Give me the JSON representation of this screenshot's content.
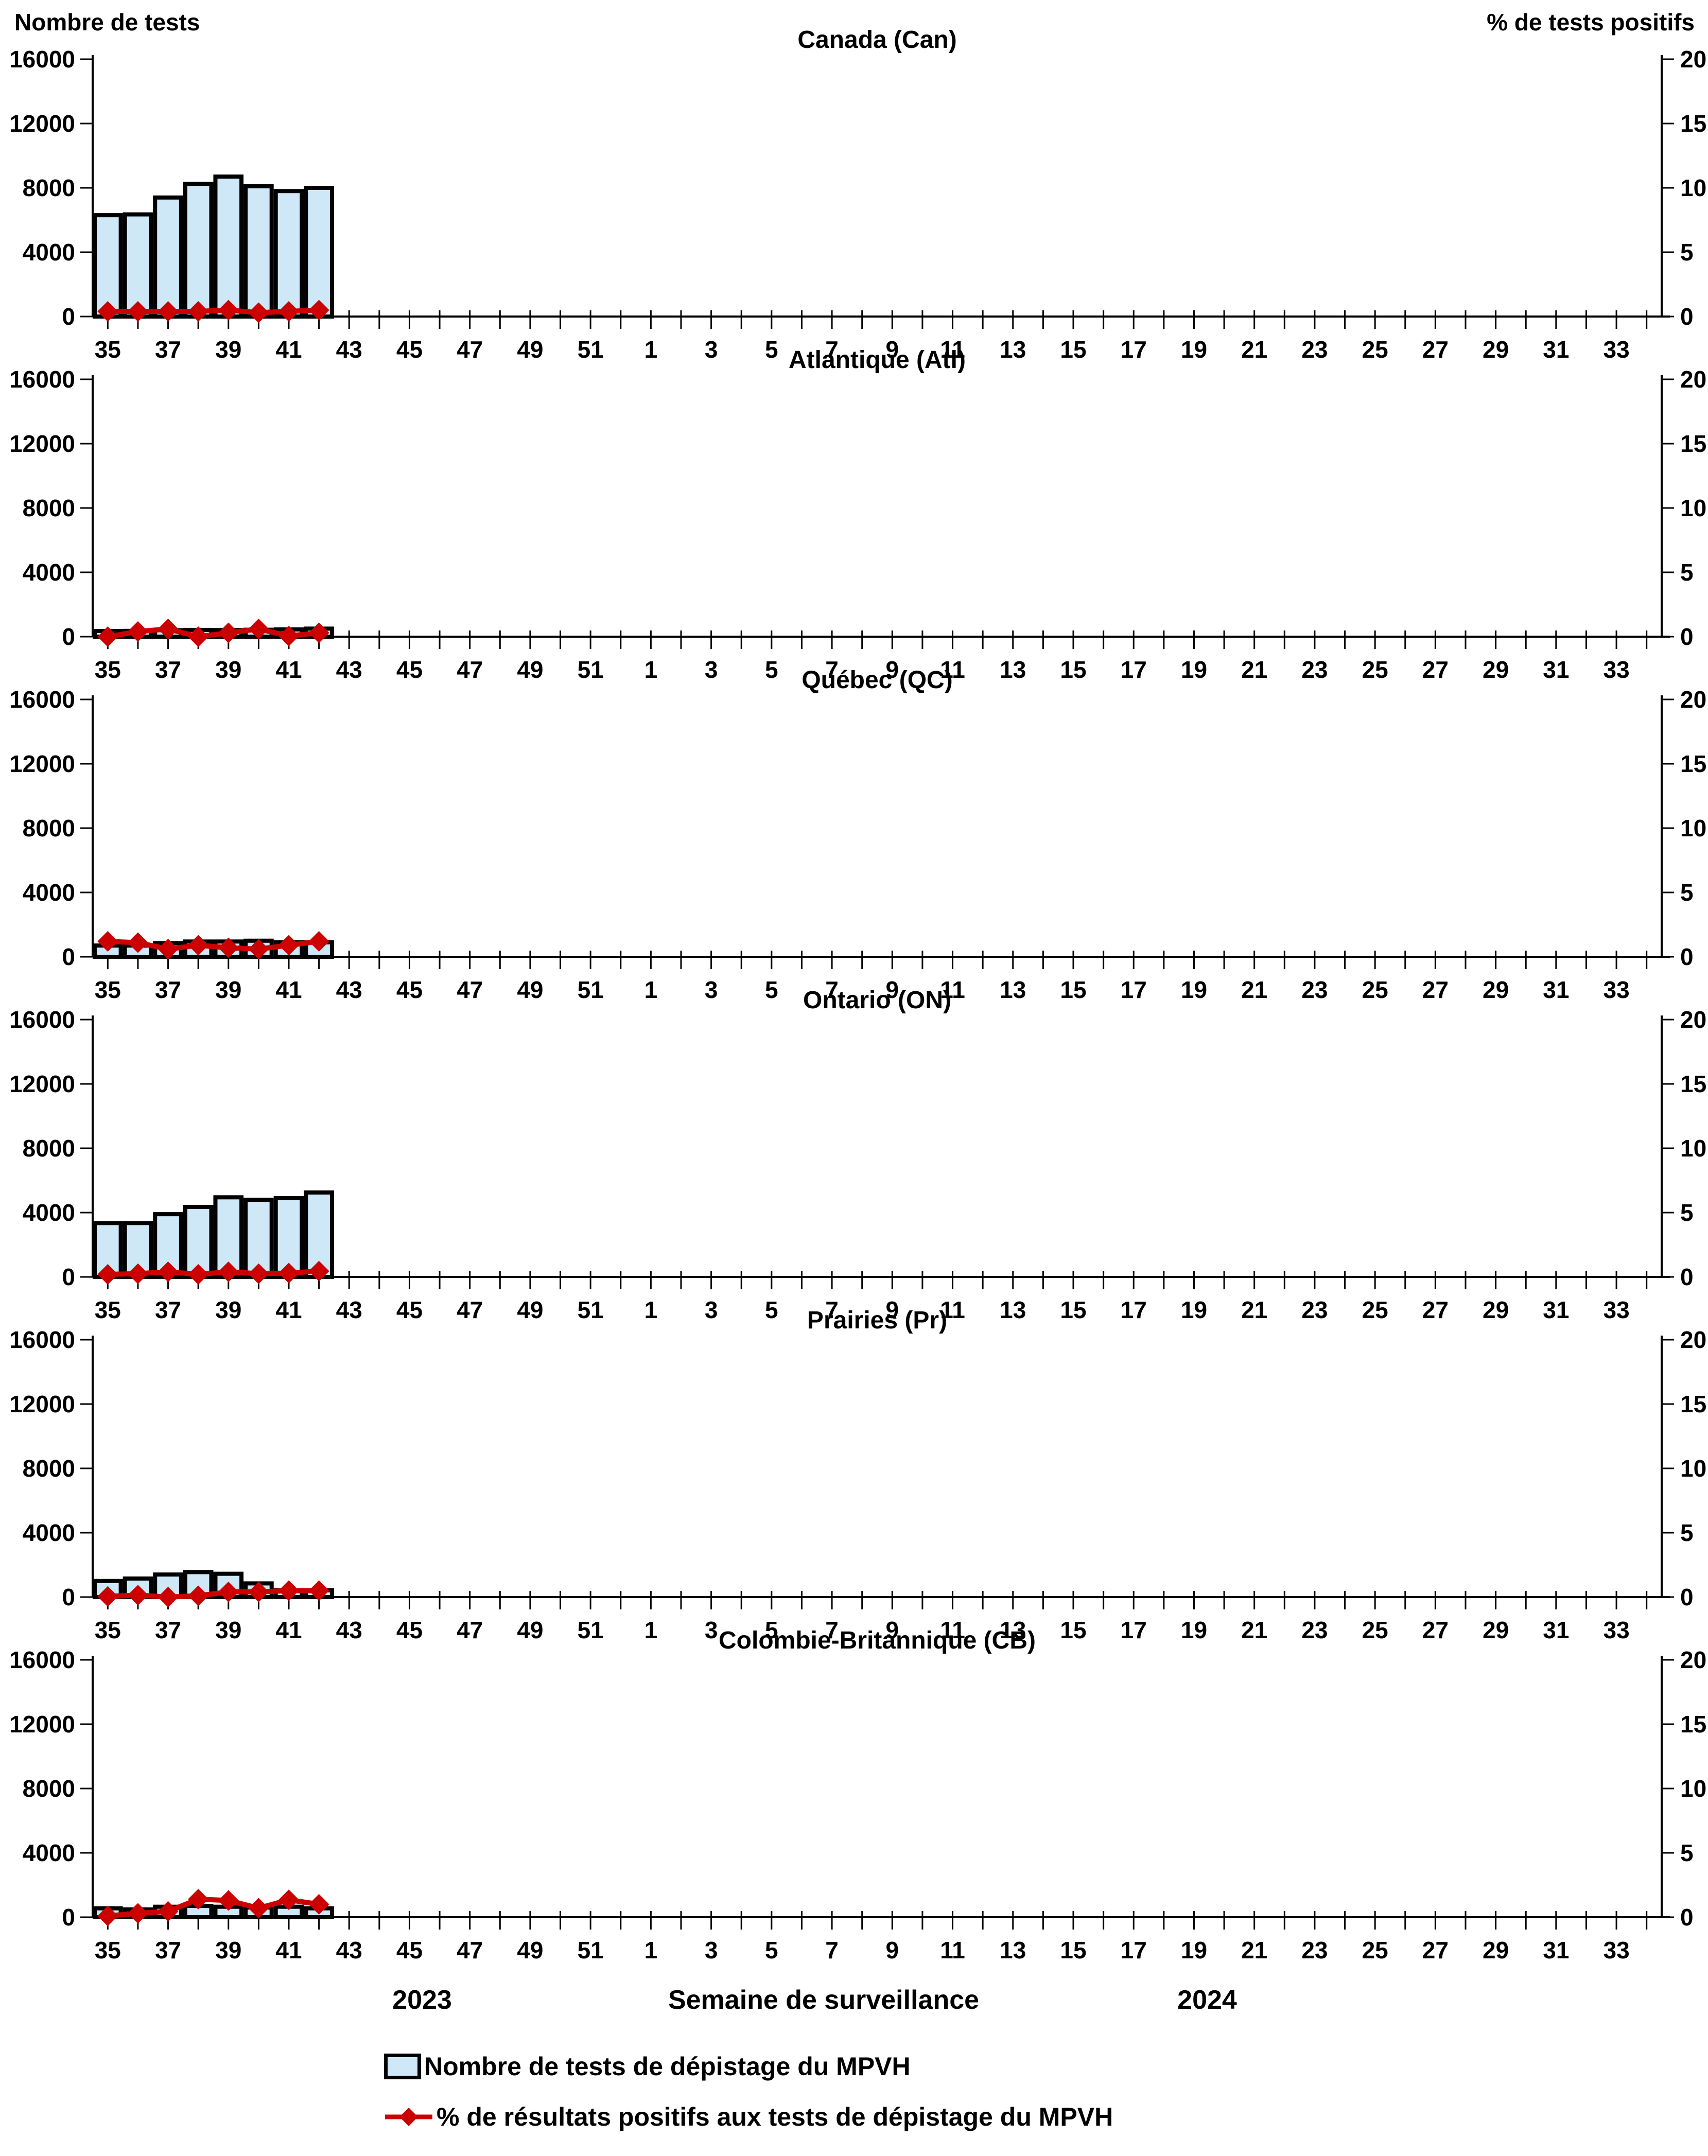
{
  "page": {
    "left_axis_title": "Nombre de tests",
    "right_axis_title": "% de tests positifs",
    "x_axis_title": "Semaine de surveillance",
    "year_left": "2023",
    "year_right": "2024"
  },
  "legend": [
    {
      "type": "bar",
      "label": "Nombre de tests de dépistage du MPVH"
    },
    {
      "type": "line",
      "label": "% de résultats positifs aux tests de dépistage du MPVH"
    }
  ],
  "colors": {
    "bar_fill": "#CFE8F8",
    "bar_border": "#000000",
    "line": "#CC0000",
    "text": "#000000"
  },
  "axes": {
    "y_left": {
      "label": "Nombre de tests",
      "min": 0,
      "max": 16000,
      "ticks": [
        0,
        4000,
        8000,
        12000,
        16000
      ]
    },
    "y_right": {
      "label": "% de tests positifs",
      "min": 0,
      "max": 20,
      "ticks": [
        0,
        5,
        10,
        15,
        20
      ]
    },
    "x": {
      "label": "Semaine de surveillance",
      "weeks": [
        35,
        36,
        37,
        38,
        39,
        40,
        41,
        42,
        43,
        44,
        45,
        46,
        47,
        48,
        49,
        50,
        51,
        52,
        1,
        2,
        3,
        4,
        5,
        6,
        7,
        8,
        9,
        10,
        11,
        12,
        13,
        14,
        15,
        16,
        17,
        18,
        19,
        20,
        21,
        22,
        23,
        24,
        25,
        26,
        27,
        28,
        29,
        30,
        31,
        32,
        33,
        34
      ],
      "labeled_ticks": [
        35,
        37,
        39,
        41,
        43,
        45,
        47,
        49,
        51,
        1,
        3,
        5,
        7,
        9,
        11,
        13,
        15,
        17,
        19,
        21,
        23,
        25,
        27,
        29,
        31,
        33
      ],
      "grid": false
    }
  },
  "chart_data": [
    {
      "type": "bar+line",
      "title": "Canada (Can)",
      "tests": {
        "weeks": [
          35,
          36,
          37,
          38,
          39,
          40,
          41,
          42
        ],
        "values": [
          6300,
          6350,
          7400,
          8250,
          8700,
          8100,
          7800,
          8000
        ]
      },
      "percent_positive": {
        "weeks": [
          35,
          36,
          37,
          38,
          39,
          40,
          41,
          42
        ],
        "values": [
          0.4,
          0.4,
          0.4,
          0.4,
          0.5,
          0.3,
          0.4,
          0.5
        ]
      }
    },
    {
      "type": "bar+line",
      "title": "Atlantique (Atl)",
      "tests": {
        "weeks": [
          35,
          36,
          37,
          38,
          39,
          40,
          41,
          42
        ],
        "values": [
          350,
          360,
          400,
          420,
          410,
          430,
          450,
          500
        ]
      },
      "percent_positive": {
        "weeks": [
          35,
          36,
          37,
          38,
          39,
          40,
          41,
          42
        ],
        "values": [
          0.0,
          0.4,
          0.6,
          0.0,
          0.3,
          0.6,
          0.05,
          0.3
        ]
      }
    },
    {
      "type": "bar+line",
      "title": "Québec (QC)",
      "tests": {
        "weeks": [
          35,
          36,
          37,
          38,
          39,
          40,
          41,
          42
        ],
        "values": [
          700,
          700,
          850,
          950,
          950,
          1000,
          900,
          900
        ]
      },
      "percent_positive": {
        "weeks": [
          35,
          36,
          37,
          38,
          39,
          40,
          41,
          42
        ],
        "values": [
          1.2,
          1.1,
          0.6,
          0.9,
          0.7,
          0.6,
          0.9,
          1.2
        ]
      }
    },
    {
      "type": "bar+line",
      "title": "Ontario (ON)",
      "tests": {
        "weeks": [
          35,
          36,
          37,
          38,
          39,
          40,
          41,
          42
        ],
        "values": [
          3350,
          3350,
          3900,
          4350,
          4950,
          4800,
          4900,
          5250
        ]
      },
      "percent_positive": {
        "weeks": [
          35,
          36,
          37,
          38,
          39,
          40,
          41,
          42
        ],
        "values": [
          0.2,
          0.25,
          0.4,
          0.2,
          0.4,
          0.25,
          0.3,
          0.45
        ]
      }
    },
    {
      "type": "bar+line",
      "title": "Prairies (Pr)",
      "tests": {
        "weeks": [
          35,
          36,
          37,
          38,
          39,
          40,
          41,
          42
        ],
        "values": [
          1000,
          1150,
          1400,
          1550,
          1450,
          850,
          420,
          420
        ]
      },
      "percent_positive": {
        "weeks": [
          35,
          36,
          37,
          38,
          39,
          40,
          41,
          42
        ],
        "values": [
          0.05,
          0.15,
          0.0,
          0.1,
          0.4,
          0.4,
          0.5,
          0.5
        ]
      }
    },
    {
      "type": "bar+line",
      "title": "Colombie-Britannique (CB)",
      "tests": {
        "weeks": [
          35,
          36,
          37,
          38,
          39,
          40,
          41,
          42
        ],
        "values": [
          550,
          480,
          650,
          700,
          650,
          600,
          650,
          550
        ]
      },
      "percent_positive": {
        "weeks": [
          35,
          36,
          37,
          38,
          39,
          40,
          41,
          42
        ],
        "values": [
          0.1,
          0.3,
          0.45,
          1.4,
          1.3,
          0.7,
          1.35,
          1.0
        ]
      }
    }
  ]
}
